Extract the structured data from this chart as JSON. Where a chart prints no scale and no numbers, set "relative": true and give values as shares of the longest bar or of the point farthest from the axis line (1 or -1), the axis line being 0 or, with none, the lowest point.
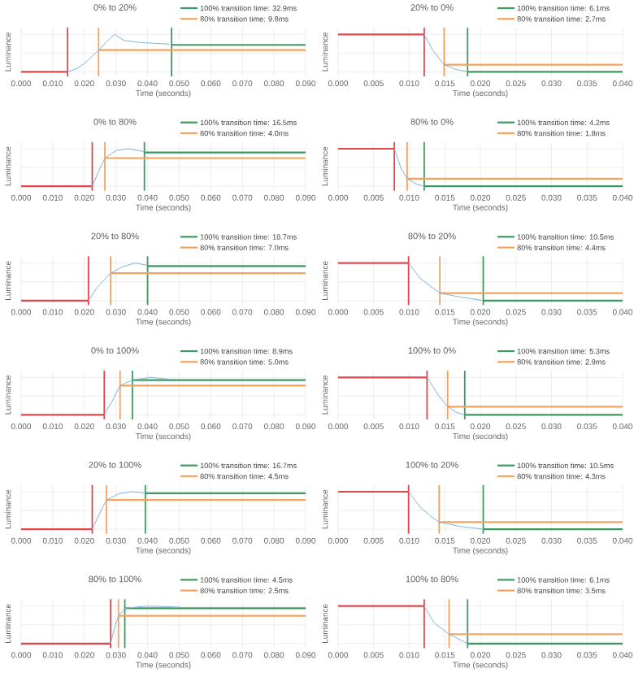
{
  "chart_data": [
    {
      "type": "line",
      "title": "0% to 20%",
      "xlabel": "Time (seconds)",
      "ylabel": "Luminance",
      "relative": true,
      "grid": true,
      "legend": "top right",
      "xlim": [
        0,
        0.09
      ],
      "xticks": [
        {
          "value": 0,
          "label": "0.000"
        },
        {
          "value": 0.01,
          "label": "0.010"
        },
        {
          "value": 0.02,
          "label": "0.020"
        },
        {
          "value": 0.03,
          "label": "0.030"
        },
        {
          "value": 0.04,
          "label": "0.040"
        },
        {
          "value": 0.05,
          "label": "0.050"
        },
        {
          "value": 0.06,
          "label": "0.060"
        },
        {
          "value": 0.07,
          "label": "0.070"
        },
        {
          "value": 0.08,
          "label": "0.080"
        },
        {
          "value": 0.09,
          "label": "0.090"
        }
      ],
      "series": [
        {
          "color": "#7fb3de",
          "x": [
            0.0147,
            0.018,
            0.021,
            0.0245,
            0.027,
            0.0295,
            0.0325,
            0.038,
            0.047
          ],
          "values": [
            0,
            0.1,
            0.3,
            0.58,
            0.8,
            1,
            0.84,
            0.78,
            0.74
          ]
        },
        {
          "color": "#e0474c",
          "x": [
            0,
            0.0147
          ],
          "values": [
            0,
            0
          ]
        },
        {
          "name": "100% transition time: 32.9ms",
          "color": "#3c9a5f",
          "x": [
            0.0476,
            0.09
          ],
          "values": [
            0.72,
            0.72
          ]
        },
        {
          "name": "80% transition time: 9.8ms",
          "color": "#f5a35c",
          "x": [
            0.0245,
            0.09
          ],
          "values": [
            0.58,
            0.58
          ]
        }
      ],
      "ref_lines": [
        {
          "axis": "x",
          "value": 0.0147,
          "color": "#e0474c"
        },
        {
          "axis": "x",
          "value": 0.0245,
          "color": "#f5a35c"
        },
        {
          "axis": "x",
          "value": 0.0476,
          "color": "#3c9a5f"
        }
      ]
    },
    {
      "type": "line",
      "title": "20% to 0%",
      "xlabel": "Time (seconds)",
      "ylabel": "Luminance",
      "relative": true,
      "grid": true,
      "legend": "top right",
      "xlim": [
        0,
        0.04
      ],
      "xticks": [
        {
          "value": 0,
          "label": "0.000"
        },
        {
          "value": 0.005,
          "label": "0.005"
        },
        {
          "value": 0.01,
          "label": "0.010"
        },
        {
          "value": 0.015,
          "label": "0.015"
        },
        {
          "value": 0.02,
          "label": "0.020"
        },
        {
          "value": 0.025,
          "label": "0.025"
        },
        {
          "value": 0.03,
          "label": "0.030"
        },
        {
          "value": 0.035,
          "label": "0.035"
        },
        {
          "value": 0.04,
          "label": "0.040"
        }
      ],
      "series": [
        {
          "color": "#7fb3de",
          "x": [
            0.0121,
            0.0133,
            0.0149,
            0.0165,
            0.0182
          ],
          "values": [
            1,
            0.58,
            0.19,
            0.07,
            0
          ]
        },
        {
          "color": "#e0474c",
          "x": [
            0,
            0.0121
          ],
          "values": [
            1,
            1
          ]
        },
        {
          "name": "100% transition time: 6.1ms",
          "color": "#3c9a5f",
          "x": [
            0.0182,
            0.04
          ],
          "values": [
            0,
            0
          ]
        },
        {
          "name": "80% transition time: 2.7ms",
          "color": "#f5a35c",
          "x": [
            0.0149,
            0.04
          ],
          "values": [
            0.19,
            0.19
          ]
        }
      ],
      "ref_lines": [
        {
          "axis": "x",
          "value": 0.0121,
          "color": "#e0474c"
        },
        {
          "axis": "x",
          "value": 0.0149,
          "color": "#f5a35c"
        },
        {
          "axis": "x",
          "value": 0.0182,
          "color": "#3c9a5f"
        }
      ]
    },
    {
      "type": "line",
      "title": "0% to 80%",
      "xlabel": "Time (seconds)",
      "ylabel": "Luminance",
      "relative": true,
      "grid": true,
      "legend": "top right",
      "xlim": [
        0,
        0.09
      ],
      "xticks": [
        {
          "value": 0,
          "label": "0.000"
        },
        {
          "value": 0.01,
          "label": "0.010"
        },
        {
          "value": 0.02,
          "label": "0.020"
        },
        {
          "value": 0.03,
          "label": "0.030"
        },
        {
          "value": 0.04,
          "label": "0.040"
        },
        {
          "value": 0.05,
          "label": "0.050"
        },
        {
          "value": 0.06,
          "label": "0.060"
        },
        {
          "value": 0.07,
          "label": "0.070"
        },
        {
          "value": 0.08,
          "label": "0.080"
        },
        {
          "value": 0.09,
          "label": "0.090"
        }
      ],
      "series": [
        {
          "color": "#7fb3de",
          "x": [
            0.0225,
            0.0245,
            0.0265,
            0.03,
            0.034,
            0.039
          ],
          "values": [
            0,
            0.4,
            0.75,
            0.95,
            1,
            0.92
          ]
        },
        {
          "color": "#e0474c",
          "x": [
            0,
            0.0225
          ],
          "values": [
            0,
            0
          ]
        },
        {
          "name": "100% transition time: 16.5ms",
          "color": "#3c9a5f",
          "x": [
            0.039,
            0.09
          ],
          "values": [
            0.9,
            0.9
          ]
        },
        {
          "name": "80% transition time: 4.0ms",
          "color": "#f5a35c",
          "x": [
            0.0265,
            0.09
          ],
          "values": [
            0.75,
            0.75
          ]
        }
      ],
      "ref_lines": [
        {
          "axis": "x",
          "value": 0.0225,
          "color": "#e0474c"
        },
        {
          "axis": "x",
          "value": 0.0265,
          "color": "#f5a35c"
        },
        {
          "axis": "x",
          "value": 0.039,
          "color": "#3c9a5f"
        }
      ]
    },
    {
      "type": "line",
      "title": "80% to 0%",
      "xlabel": "Time (seconds)",
      "ylabel": "Luminance",
      "relative": true,
      "grid": true,
      "legend": "top right",
      "xlim": [
        0,
        0.04
      ],
      "xticks": [
        {
          "value": 0,
          "label": "0.000"
        },
        {
          "value": 0.005,
          "label": "0.005"
        },
        {
          "value": 0.01,
          "label": "0.010"
        },
        {
          "value": 0.015,
          "label": "0.015"
        },
        {
          "value": 0.02,
          "label": "0.020"
        },
        {
          "value": 0.025,
          "label": "0.025"
        },
        {
          "value": 0.03,
          "label": "0.030"
        },
        {
          "value": 0.035,
          "label": "0.035"
        },
        {
          "value": 0.04,
          "label": "0.040"
        }
      ],
      "series": [
        {
          "color": "#7fb3de",
          "x": [
            0.0079,
            0.0088,
            0.0097,
            0.011,
            0.0121
          ],
          "values": [
            1,
            0.5,
            0.2,
            0.06,
            0
          ]
        },
        {
          "color": "#e0474c",
          "x": [
            0,
            0.0079
          ],
          "values": [
            1,
            1
          ]
        },
        {
          "name": "100% transition time: 4.2ms",
          "color": "#3c9a5f",
          "x": [
            0.0121,
            0.04
          ],
          "values": [
            0,
            0
          ]
        },
        {
          "name": "80% transition time: 1.8ms",
          "color": "#f5a35c",
          "x": [
            0.0097,
            0.04
          ],
          "values": [
            0.2,
            0.2
          ]
        }
      ],
      "ref_lines": [
        {
          "axis": "x",
          "value": 0.0079,
          "color": "#e0474c"
        },
        {
          "axis": "x",
          "value": 0.0097,
          "color": "#f5a35c"
        },
        {
          "axis": "x",
          "value": 0.0121,
          "color": "#3c9a5f"
        }
      ]
    },
    {
      "type": "line",
      "title": "20% to 80%",
      "xlabel": "Time (seconds)",
      "ylabel": "Luminance",
      "relative": true,
      "grid": true,
      "legend": "top right",
      "xlim": [
        0,
        0.09
      ],
      "xticks": [
        {
          "value": 0,
          "label": "0.000"
        },
        {
          "value": 0.01,
          "label": "0.010"
        },
        {
          "value": 0.02,
          "label": "0.020"
        },
        {
          "value": 0.03,
          "label": "0.030"
        },
        {
          "value": 0.04,
          "label": "0.040"
        },
        {
          "value": 0.05,
          "label": "0.050"
        },
        {
          "value": 0.06,
          "label": "0.060"
        },
        {
          "value": 0.07,
          "label": "0.070"
        },
        {
          "value": 0.08,
          "label": "0.080"
        },
        {
          "value": 0.09,
          "label": "0.090"
        }
      ],
      "series": [
        {
          "color": "#7fb3de",
          "x": [
            0.0213,
            0.024,
            0.0283,
            0.032,
            0.036,
            0.04
          ],
          "values": [
            0,
            0.35,
            0.73,
            0.9,
            1,
            0.94
          ]
        },
        {
          "color": "#e0474c",
          "x": [
            0,
            0.0213
          ],
          "values": [
            0,
            0
          ]
        },
        {
          "name": "100% transition time: 18.7ms",
          "color": "#3c9a5f",
          "x": [
            0.04,
            0.09
          ],
          "values": [
            0.92,
            0.92
          ]
        },
        {
          "name": "80% transition time: 7.0ms",
          "color": "#f5a35c",
          "x": [
            0.0283,
            0.09
          ],
          "values": [
            0.73,
            0.73
          ]
        }
      ],
      "ref_lines": [
        {
          "axis": "x",
          "value": 0.0213,
          "color": "#e0474c"
        },
        {
          "axis": "x",
          "value": 0.0283,
          "color": "#f5a35c"
        },
        {
          "axis": "x",
          "value": 0.04,
          "color": "#3c9a5f"
        }
      ]
    },
    {
      "type": "line",
      "title": "80% to 20%",
      "xlabel": "Time (seconds)",
      "ylabel": "Luminance",
      "relative": true,
      "grid": true,
      "legend": "top right",
      "xlim": [
        0,
        0.04
      ],
      "xticks": [
        {
          "value": 0,
          "label": "0.000"
        },
        {
          "value": 0.005,
          "label": "0.005"
        },
        {
          "value": 0.01,
          "label": "0.010"
        },
        {
          "value": 0.015,
          "label": "0.015"
        },
        {
          "value": 0.02,
          "label": "0.020"
        },
        {
          "value": 0.025,
          "label": "0.025"
        },
        {
          "value": 0.03,
          "label": "0.030"
        },
        {
          "value": 0.035,
          "label": "0.035"
        },
        {
          "value": 0.04,
          "label": "0.040"
        }
      ],
      "series": [
        {
          "color": "#7fb3de",
          "x": [
            0.0099,
            0.0115,
            0.013,
            0.0143,
            0.017,
            0.0204
          ],
          "values": [
            1,
            0.6,
            0.38,
            0.2,
            0.1,
            0
          ]
        },
        {
          "color": "#e0474c",
          "x": [
            0,
            0.0099
          ],
          "values": [
            1,
            1
          ]
        },
        {
          "name": "100% transition time: 10.5ms",
          "color": "#3c9a5f",
          "x": [
            0.0204,
            0.04
          ],
          "values": [
            0,
            0
          ]
        },
        {
          "name": "80% transition time: 4.4ms",
          "color": "#f5a35c",
          "x": [
            0.0143,
            0.04
          ],
          "values": [
            0.2,
            0.2
          ]
        }
      ],
      "ref_lines": [
        {
          "axis": "x",
          "value": 0.0099,
          "color": "#e0474c"
        },
        {
          "axis": "x",
          "value": 0.0143,
          "color": "#f5a35c"
        },
        {
          "axis": "x",
          "value": 0.0204,
          "color": "#3c9a5f"
        }
      ]
    },
    {
      "type": "line",
      "title": "0% to 100%",
      "xlabel": "Time (seconds)",
      "ylabel": "Luminance",
      "relative": true,
      "grid": true,
      "legend": "top right",
      "xlim": [
        0,
        0.09
      ],
      "xticks": [
        {
          "value": 0,
          "label": "0.000"
        },
        {
          "value": 0.01,
          "label": "0.010"
        },
        {
          "value": 0.02,
          "label": "0.020"
        },
        {
          "value": 0.03,
          "label": "0.030"
        },
        {
          "value": 0.04,
          "label": "0.040"
        },
        {
          "value": 0.05,
          "label": "0.050"
        },
        {
          "value": 0.06,
          "label": "0.060"
        },
        {
          "value": 0.07,
          "label": "0.070"
        },
        {
          "value": 0.08,
          "label": "0.080"
        },
        {
          "value": 0.09,
          "label": "0.090"
        }
      ],
      "series": [
        {
          "color": "#7fb3de",
          "x": [
            0.0263,
            0.029,
            0.0313,
            0.0352,
            0.041,
            0.047
          ],
          "values": [
            0,
            0.4,
            0.78,
            0.93,
            1,
            0.95
          ]
        },
        {
          "color": "#e0474c",
          "x": [
            0,
            0.0263
          ],
          "values": [
            0,
            0
          ]
        },
        {
          "name": "100% transition time: 8.9ms",
          "color": "#3c9a5f",
          "x": [
            0.0352,
            0.09
          ],
          "values": [
            0.93,
            0.93
          ]
        },
        {
          "name": "80% transition time: 5.0ms",
          "color": "#f5a35c",
          "x": [
            0.0313,
            0.09
          ],
          "values": [
            0.78,
            0.78
          ]
        }
      ],
      "ref_lines": [
        {
          "axis": "x",
          "value": 0.0263,
          "color": "#e0474c"
        },
        {
          "axis": "x",
          "value": 0.0313,
          "color": "#f5a35c"
        },
        {
          "axis": "x",
          "value": 0.0352,
          "color": "#3c9a5f"
        }
      ]
    },
    {
      "type": "line",
      "title": "100% to 0%",
      "xlabel": "Time (seconds)",
      "ylabel": "Luminance",
      "relative": true,
      "grid": true,
      "legend": "top right",
      "xlim": [
        0,
        0.04
      ],
      "xticks": [
        {
          "value": 0,
          "label": "0.000"
        },
        {
          "value": 0.005,
          "label": "0.005"
        },
        {
          "value": 0.01,
          "label": "0.010"
        },
        {
          "value": 0.015,
          "label": "0.015"
        },
        {
          "value": 0.02,
          "label": "0.020"
        },
        {
          "value": 0.025,
          "label": "0.025"
        },
        {
          "value": 0.03,
          "label": "0.030"
        },
        {
          "value": 0.035,
          "label": "0.035"
        },
        {
          "value": 0.04,
          "label": "0.040"
        }
      ],
      "series": [
        {
          "color": "#7fb3de",
          "x": [
            0.0125,
            0.014,
            0.0154,
            0.0165,
            0.0178
          ],
          "values": [
            1,
            0.55,
            0.22,
            0.08,
            0
          ]
        },
        {
          "color": "#e0474c",
          "x": [
            0,
            0.0125
          ],
          "values": [
            1,
            1
          ]
        },
        {
          "name": "100% transition time: 5.3ms",
          "color": "#3c9a5f",
          "x": [
            0.0178,
            0.04
          ],
          "values": [
            0,
            0
          ]
        },
        {
          "name": "80% transition time: 2.9ms",
          "color": "#f5a35c",
          "x": [
            0.0154,
            0.04
          ],
          "values": [
            0.22,
            0.22
          ]
        }
      ],
      "ref_lines": [
        {
          "axis": "x",
          "value": 0.0125,
          "color": "#e0474c"
        },
        {
          "axis": "x",
          "value": 0.0154,
          "color": "#f5a35c"
        },
        {
          "axis": "x",
          "value": 0.0178,
          "color": "#3c9a5f"
        }
      ]
    },
    {
      "type": "line",
      "title": "20% to 100%",
      "xlabel": "Time (seconds)",
      "ylabel": "Luminance",
      "relative": true,
      "grid": true,
      "legend": "top right",
      "xlim": [
        0,
        0.09
      ],
      "xticks": [
        {
          "value": 0,
          "label": "0.000"
        },
        {
          "value": 0.01,
          "label": "0.010"
        },
        {
          "value": 0.02,
          "label": "0.020"
        },
        {
          "value": 0.03,
          "label": "0.030"
        },
        {
          "value": 0.04,
          "label": "0.040"
        },
        {
          "value": 0.05,
          "label": "0.050"
        },
        {
          "value": 0.06,
          "label": "0.060"
        },
        {
          "value": 0.07,
          "label": "0.070"
        },
        {
          "value": 0.08,
          "label": "0.080"
        },
        {
          "value": 0.09,
          "label": "0.090"
        }
      ],
      "series": [
        {
          "color": "#7fb3de",
          "x": [
            0.0225,
            0.025,
            0.027,
            0.031,
            0.035,
            0.0393
          ],
          "values": [
            0,
            0.45,
            0.78,
            0.95,
            1,
            0.97
          ]
        },
        {
          "color": "#e0474c",
          "x": [
            0,
            0.0225
          ],
          "values": [
            0,
            0
          ]
        },
        {
          "name": "100% transition time: 16.7ms",
          "color": "#3c9a5f",
          "x": [
            0.0393,
            0.09
          ],
          "values": [
            0.96,
            0.96
          ]
        },
        {
          "name": "80% transition time: 4.5ms",
          "color": "#f5a35c",
          "x": [
            0.027,
            0.09
          ],
          "values": [
            0.78,
            0.78
          ]
        }
      ],
      "ref_lines": [
        {
          "axis": "x",
          "value": 0.0225,
          "color": "#e0474c"
        },
        {
          "axis": "x",
          "value": 0.027,
          "color": "#f5a35c"
        },
        {
          "axis": "x",
          "value": 0.0393,
          "color": "#3c9a5f"
        }
      ]
    },
    {
      "type": "line",
      "title": "100% to 20%",
      "xlabel": "Time (seconds)",
      "ylabel": "Luminance",
      "relative": true,
      "grid": true,
      "legend": "top right",
      "xlim": [
        0,
        0.04
      ],
      "xticks": [
        {
          "value": 0,
          "label": "0.000"
        },
        {
          "value": 0.005,
          "label": "0.005"
        },
        {
          "value": 0.01,
          "label": "0.010"
        },
        {
          "value": 0.015,
          "label": "0.015"
        },
        {
          "value": 0.02,
          "label": "0.020"
        },
        {
          "value": 0.025,
          "label": "0.025"
        },
        {
          "value": 0.03,
          "label": "0.030"
        },
        {
          "value": 0.035,
          "label": "0.035"
        },
        {
          "value": 0.04,
          "label": "0.040"
        }
      ],
      "series": [
        {
          "color": "#7fb3de",
          "x": [
            0.0099,
            0.0115,
            0.0128,
            0.0142,
            0.017,
            0.0204
          ],
          "values": [
            1,
            0.6,
            0.38,
            0.19,
            0.08,
            0
          ]
        },
        {
          "color": "#e0474c",
          "x": [
            0,
            0.0099
          ],
          "values": [
            1,
            1
          ]
        },
        {
          "name": "100% transition time: 10.5ms",
          "color": "#3c9a5f",
          "x": [
            0.0204,
            0.04
          ],
          "values": [
            0,
            0
          ]
        },
        {
          "name": "80% transition time: 4.3ms",
          "color": "#f5a35c",
          "x": [
            0.0142,
            0.04
          ],
          "values": [
            0.19,
            0.19
          ]
        }
      ],
      "ref_lines": [
        {
          "axis": "x",
          "value": 0.0099,
          "color": "#e0474c"
        },
        {
          "axis": "x",
          "value": 0.0142,
          "color": "#f5a35c"
        },
        {
          "axis": "x",
          "value": 0.0204,
          "color": "#3c9a5f"
        }
      ]
    },
    {
      "type": "line",
      "title": "80% to 100%",
      "xlabel": "Time (seconds)",
      "ylabel": "Luminance",
      "relative": true,
      "grid": true,
      "legend": "top right",
      "xlim": [
        0,
        0.09
      ],
      "xticks": [
        {
          "value": 0,
          "label": "0.000"
        },
        {
          "value": 0.01,
          "label": "0.010"
        },
        {
          "value": 0.02,
          "label": "0.020"
        },
        {
          "value": 0.03,
          "label": "0.030"
        },
        {
          "value": 0.04,
          "label": "0.040"
        },
        {
          "value": 0.05,
          "label": "0.050"
        },
        {
          "value": 0.06,
          "label": "0.060"
        },
        {
          "value": 0.07,
          "label": "0.070"
        },
        {
          "value": 0.08,
          "label": "0.080"
        },
        {
          "value": 0.09,
          "label": "0.090"
        }
      ],
      "series": [
        {
          "color": "#7fb3de",
          "x": [
            0.0283,
            0.0295,
            0.0308,
            0.0328,
            0.04,
            0.05
          ],
          "values": [
            0,
            0.4,
            0.74,
            0.94,
            1,
            0.97
          ]
        },
        {
          "color": "#e0474c",
          "x": [
            0,
            0.0283
          ],
          "values": [
            0,
            0
          ]
        },
        {
          "name": "100% transition time: 4.5ms",
          "color": "#3c9a5f",
          "x": [
            0.0328,
            0.09
          ],
          "values": [
            0.94,
            0.94
          ]
        },
        {
          "name": "80% transition time: 2.5ms",
          "color": "#f5a35c",
          "x": [
            0.0308,
            0.09
          ],
          "values": [
            0.74,
            0.74
          ]
        }
      ],
      "ref_lines": [
        {
          "axis": "x",
          "value": 0.0283,
          "color": "#e0474c"
        },
        {
          "axis": "x",
          "value": 0.0308,
          "color": "#f5a35c"
        },
        {
          "axis": "x",
          "value": 0.0328,
          "color": "#3c9a5f"
        }
      ]
    },
    {
      "type": "line",
      "title": "100% to 80%",
      "xlabel": "Time (seconds)",
      "ylabel": "Luminance",
      "relative": true,
      "grid": true,
      "legend": "top right",
      "xlim": [
        0,
        0.04
      ],
      "xticks": [
        {
          "value": 0,
          "label": "0.000"
        },
        {
          "value": 0.005,
          "label": "0.005"
        },
        {
          "value": 0.01,
          "label": "0.010"
        },
        {
          "value": 0.015,
          "label": "0.015"
        },
        {
          "value": 0.02,
          "label": "0.020"
        },
        {
          "value": 0.025,
          "label": "0.025"
        },
        {
          "value": 0.03,
          "label": "0.030"
        },
        {
          "value": 0.035,
          "label": "0.035"
        },
        {
          "value": 0.04,
          "label": "0.040"
        }
      ],
      "series": [
        {
          "color": "#7fb3de",
          "x": [
            0.0121,
            0.0135,
            0.0156,
            0.0182
          ],
          "values": [
            1,
            0.55,
            0.25,
            0
          ]
        },
        {
          "color": "#e0474c",
          "x": [
            0,
            0.0121
          ],
          "values": [
            1,
            1
          ]
        },
        {
          "name": "100% transition time: 6.1ms",
          "color": "#3c9a5f",
          "x": [
            0.0182,
            0.04
          ],
          "values": [
            0,
            0
          ]
        },
        {
          "name": "80% transition time: 3.5ms",
          "color": "#f5a35c",
          "x": [
            0.0156,
            0.04
          ],
          "values": [
            0.25,
            0.25
          ]
        }
      ],
      "ref_lines": [
        {
          "axis": "x",
          "value": 0.0121,
          "color": "#e0474c"
        },
        {
          "axis": "x",
          "value": 0.0156,
          "color": "#f5a35c"
        },
        {
          "axis": "x",
          "value": 0.0182,
          "color": "#3c9a5f"
        }
      ]
    }
  ]
}
